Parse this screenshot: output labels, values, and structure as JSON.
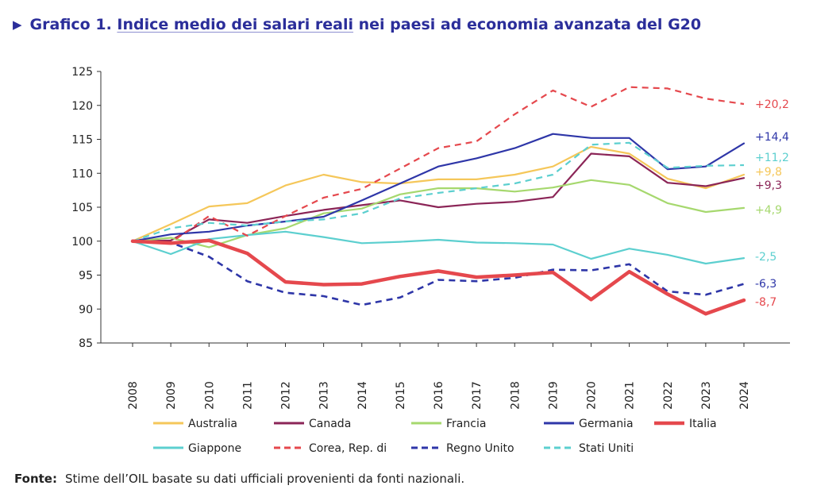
{
  "header": {
    "arrow": "▶",
    "prefix": "Grafico 1. ",
    "link_text": "Indice medio dei salari reali",
    "suffix": " nei paesi ad economia avanzata del G20"
  },
  "source": {
    "label": "Fonte:",
    "text": "Stime dell’OIL basate su dati ufficiali provenienti da fonti nazionali."
  },
  "chart_data": {
    "type": "line",
    "title": "Indice medio dei salari reali nei paesi ad economia avanzata del G20",
    "xlabel": "",
    "ylabel": "",
    "ylim": [
      85,
      125
    ],
    "yticks": [
      "85",
      "90",
      "95",
      "100",
      "105",
      "110",
      "115",
      "120",
      "125"
    ],
    "categories": [
      "2008",
      "2009",
      "2010",
      "2011",
      "2012",
      "2013",
      "2014",
      "2015",
      "2016",
      "2017",
      "2018",
      "2019",
      "2020",
      "2021",
      "2022",
      "2023",
      "2024"
    ],
    "legend_position": "bottom",
    "series": [
      {
        "name": "Australia",
        "color": "#f5c75a",
        "dash": "solid",
        "width": 2.2,
        "values": [
          100,
          102.5,
          105.1,
          105.6,
          108.2,
          109.8,
          108.7,
          108.5,
          109.1,
          109.1,
          109.8,
          111.0,
          113.9,
          112.9,
          109.2,
          107.8,
          109.8
        ],
        "end_label": "+9,8"
      },
      {
        "name": "Canada",
        "color": "#8b2557",
        "dash": "solid",
        "width": 2.2,
        "values": [
          100,
          100.1,
          103.2,
          102.7,
          103.7,
          104.6,
          105.3,
          106.0,
          105.0,
          105.5,
          105.8,
          106.5,
          112.9,
          112.5,
          108.6,
          108.1,
          109.3
        ],
        "end_label": "+9,3"
      },
      {
        "name": "Francia",
        "color": "#a6d86e",
        "dash": "solid",
        "width": 2.2,
        "values": [
          100,
          100.5,
          99.1,
          100.9,
          101.9,
          104.1,
          104.8,
          106.9,
          107.8,
          107.8,
          107.3,
          107.9,
          109.0,
          108.3,
          105.6,
          104.3,
          104.9
        ],
        "end_label": "+4,9"
      },
      {
        "name": "Germania",
        "color": "#2e36a8",
        "dash": "solid",
        "width": 2.2,
        "values": [
          100,
          101.0,
          101.4,
          102.3,
          102.9,
          103.6,
          106.0,
          108.5,
          111.0,
          112.2,
          113.7,
          115.8,
          115.2,
          115.2,
          110.6,
          111.0,
          114.4
        ],
        "end_label": "+14,4"
      },
      {
        "name": "Italia",
        "color": "#e5484d",
        "dash": "solid",
        "width": 4.5,
        "values": [
          100,
          99.7,
          100.1,
          98.2,
          94.0,
          93.6,
          93.7,
          94.8,
          95.6,
          94.7,
          95.0,
          95.4,
          91.4,
          95.5,
          92.2,
          89.3,
          91.3
        ],
        "end_label": "-8,7"
      },
      {
        "name": "Giappone",
        "color": "#5ccfcf",
        "dash": "solid",
        "width": 2.2,
        "values": [
          100,
          98.1,
          100.3,
          100.9,
          101.4,
          100.6,
          99.7,
          99.9,
          100.2,
          99.8,
          99.7,
          99.5,
          97.4,
          98.9,
          98.0,
          96.7,
          97.5
        ],
        "end_label": "-2,5"
      },
      {
        "name": "Corea, Rep. di",
        "color": "#e5484d",
        "dash": "dashed",
        "width": 2.2,
        "values": [
          100,
          99.8,
          103.7,
          100.8,
          103.7,
          106.4,
          107.7,
          110.7,
          113.7,
          114.7,
          118.7,
          122.2,
          119.8,
          122.7,
          122.5,
          121.0,
          120.2
        ],
        "end_label": "+20,2"
      },
      {
        "name": "Regno Unito",
        "color": "#2e36a8",
        "dash": "dashed",
        "width": 2.6,
        "values": [
          100,
          99.8,
          97.7,
          94.1,
          92.4,
          91.9,
          90.6,
          91.7,
          94.3,
          94.1,
          94.6,
          95.8,
          95.7,
          96.6,
          92.6,
          92.1,
          93.7
        ],
        "end_label": "-6,3"
      },
      {
        "name": "Stati Uniti",
        "color": "#5ccfcf",
        "dash": "dashed",
        "width": 2.2,
        "values": [
          100,
          101.9,
          102.7,
          102.3,
          102.9,
          103.2,
          104.1,
          106.3,
          107.1,
          107.8,
          108.5,
          109.8,
          114.2,
          114.5,
          110.8,
          111.1,
          111.2
        ],
        "end_label": "+11,2"
      }
    ]
  },
  "legend": {
    "row1": [
      "Australia",
      "Canada",
      "Francia",
      "Germania",
      "Italia"
    ],
    "row2": [
      "Giappone",
      "Corea, Rep. di",
      "Regno Unito",
      "Stati Uniti"
    ]
  }
}
